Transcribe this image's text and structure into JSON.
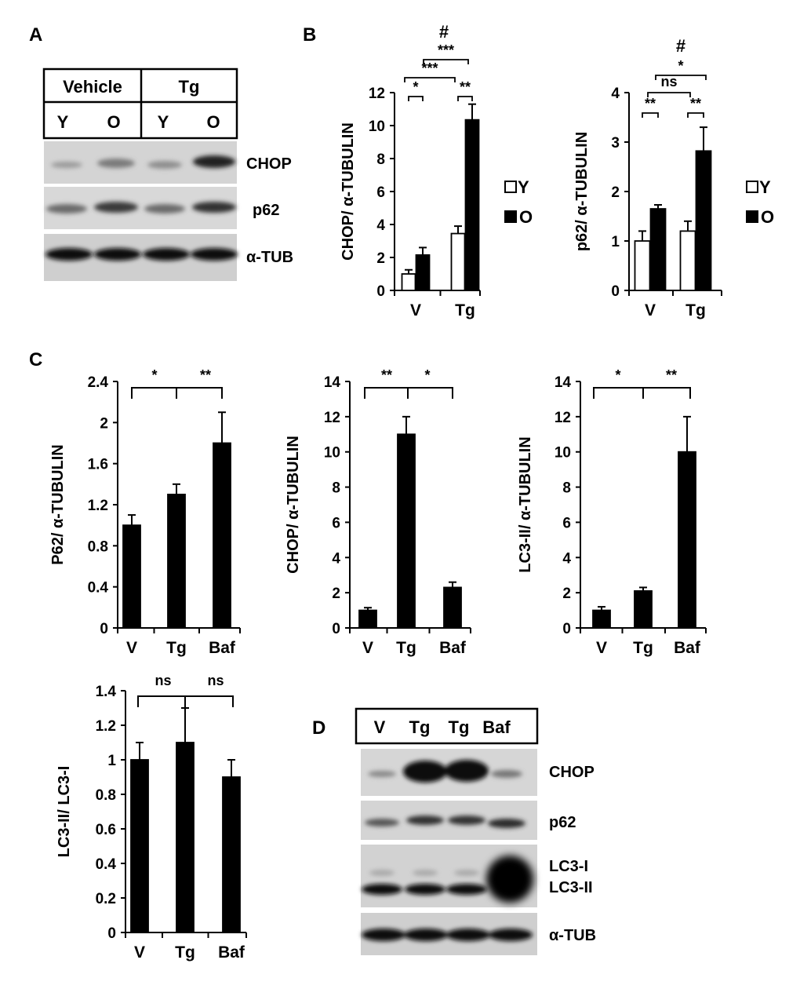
{
  "panels": {
    "A": "A",
    "B": "B",
    "C": "C",
    "D": "D"
  },
  "blot_a": {
    "groups": [
      "Vehicle",
      "Tg"
    ],
    "lanes": [
      "Y",
      "O",
      "Y",
      "O"
    ],
    "bands": [
      "CHOP",
      "p62",
      "α-TUB"
    ]
  },
  "blot_d": {
    "lanes": [
      "V",
      "Tg",
      "Tg",
      "Baf"
    ],
    "bands": [
      "CHOP",
      "p62",
      "LC3-I",
      "LC3-II",
      "α-TUB"
    ]
  },
  "legend": {
    "young": "Y",
    "old": "O"
  },
  "chart_data": [
    {
      "id": "b1",
      "type": "bar",
      "categories": [
        "V",
        "Tg"
      ],
      "series": [
        {
          "name": "Y",
          "values": [
            1.0,
            3.45
          ],
          "errors": [
            0.25,
            0.45
          ]
        },
        {
          "name": "O",
          "values": [
            2.15,
            10.35
          ],
          "errors": [
            0.45,
            0.95
          ]
        }
      ],
      "ylabel": "CHOP/ α-TUBULIN",
      "ylim": [
        0,
        12
      ],
      "yticks": [
        0,
        2,
        4,
        6,
        8,
        10,
        12
      ],
      "annotations": [
        {
          "text": "*"
        },
        {
          "text": "**"
        },
        {
          "text": "***"
        },
        {
          "text": "***"
        },
        {
          "text": "#"
        }
      ]
    },
    {
      "id": "b2",
      "type": "bar",
      "categories": [
        "V",
        "Tg"
      ],
      "series": [
        {
          "name": "Y",
          "values": [
            1.0,
            1.2
          ],
          "errors": [
            0.2,
            0.2
          ]
        },
        {
          "name": "O",
          "values": [
            1.65,
            2.82
          ],
          "errors": [
            0.08,
            0.48
          ]
        }
      ],
      "ylabel": "p62/ α-TUBULIN",
      "ylim": [
        0,
        4
      ],
      "yticks": [
        0,
        1,
        2,
        3,
        4
      ],
      "annotations": [
        {
          "text": "**"
        },
        {
          "text": "**"
        },
        {
          "text": "ns"
        },
        {
          "text": "*"
        },
        {
          "text": "#"
        }
      ]
    },
    {
      "id": "c1",
      "type": "bar",
      "categories": [
        "V",
        "Tg",
        "Baf"
      ],
      "values": [
        1.0,
        1.3,
        1.8
      ],
      "errors": [
        0.1,
        0.1,
        0.3
      ],
      "ylabel": "P62/ α-TUBULIN",
      "ylim": [
        0,
        2.4
      ],
      "yticks": [
        "0",
        "0.4",
        "0.8",
        "1.2",
        "1.6",
        "2",
        "2.4"
      ],
      "annotations": [
        {
          "text": "*"
        },
        {
          "text": "**"
        }
      ]
    },
    {
      "id": "c2",
      "type": "bar",
      "categories": [
        "V",
        "Tg",
        "Baf"
      ],
      "values": [
        1.0,
        11.0,
        2.3
      ],
      "errors": [
        0.15,
        1.0,
        0.3
      ],
      "ylabel": "CHOP/ α-TUBULIN",
      "ylim": [
        0,
        14
      ],
      "yticks": [
        "0",
        "2",
        "4",
        "6",
        "8",
        "10",
        "12",
        "14"
      ],
      "annotations": [
        {
          "text": "**"
        },
        {
          "text": "*"
        }
      ]
    },
    {
      "id": "c3",
      "type": "bar",
      "categories": [
        "V",
        "Tg",
        "Baf"
      ],
      "values": [
        1.0,
        2.1,
        10.0
      ],
      "errors": [
        0.2,
        0.2,
        2.0
      ],
      "ylabel": "LC3-II/ α-TUBULIN",
      "ylim": [
        0,
        14
      ],
      "yticks": [
        "0",
        "2",
        "4",
        "6",
        "8",
        "10",
        "12",
        "14"
      ],
      "annotations": [
        {
          "text": "*"
        },
        {
          "text": "**"
        }
      ]
    },
    {
      "id": "c4",
      "type": "bar",
      "categories": [
        "V",
        "Tg",
        "Baf"
      ],
      "values": [
        1.0,
        1.1,
        0.9
      ],
      "errors": [
        0.1,
        0.2,
        0.1
      ],
      "ylabel": "LC3-II/ LC3-I",
      "ylim": [
        0,
        1.4
      ],
      "yticks": [
        "0",
        "0.2",
        "0.4",
        "0.6",
        "0.8",
        "1",
        "1.2",
        "1.4"
      ],
      "annotations": [
        {
          "text": "ns"
        },
        {
          "text": "ns"
        }
      ]
    }
  ]
}
